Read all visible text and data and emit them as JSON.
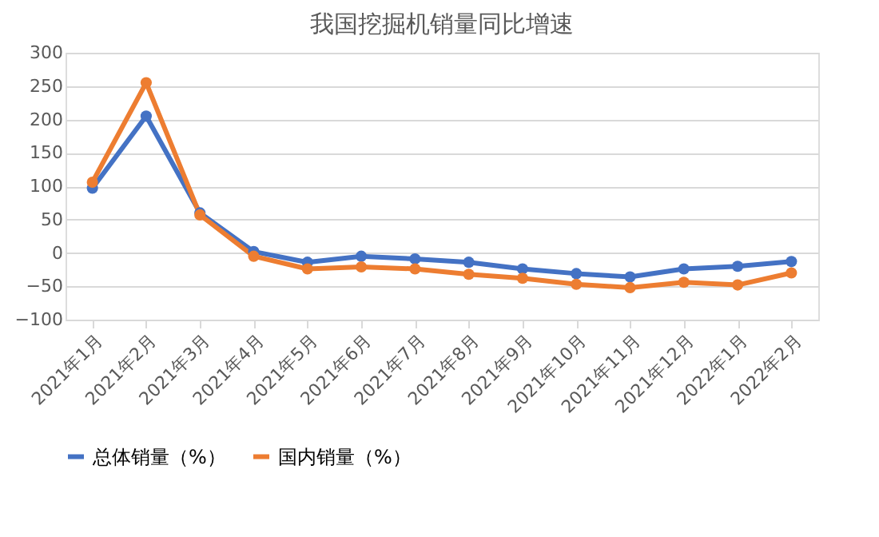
{
  "chart_data": {
    "type": "line",
    "title": "我国挖掘机销量同比增速",
    "categories": [
      "2021年1月",
      "2021年2月",
      "2021年3月",
      "2021年4月",
      "2021年5月",
      "2021年6月",
      "2021年7月",
      "2021年8月",
      "2021年9月",
      "2021年10月",
      "2021年11月",
      "2021年12月",
      "2022年1月",
      "2022年2月"
    ],
    "series": [
      {
        "name": "总体销量（%）",
        "color": "#4472c4",
        "values": [
          97,
          205,
          60,
          2,
          -14,
          -5,
          -9,
          -14,
          -24,
          -31,
          -36,
          -24,
          -20,
          -13
        ]
      },
      {
        "name": "国内销量（%）",
        "color": "#ed7d31",
        "values": [
          106,
          255,
          57,
          -5,
          -24,
          -21,
          -24,
          -32,
          -38,
          -47,
          -52,
          -44,
          -48,
          -30
        ]
      }
    ],
    "ylim": [
      -100,
      300
    ],
    "yticks": [
      -100,
      -50,
      0,
      50,
      100,
      150,
      200,
      250,
      300
    ],
    "grid": "y",
    "legend": "bottom",
    "marker": "circle",
    "line_style": "solid"
  }
}
